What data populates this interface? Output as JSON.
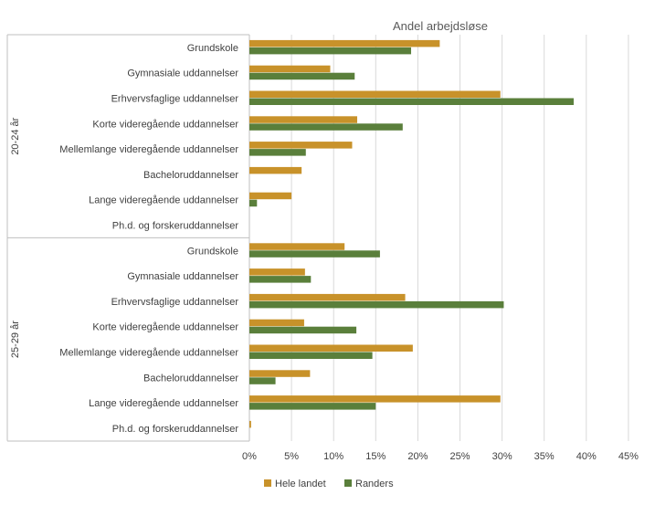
{
  "chart_data": {
    "type": "bar",
    "orientation": "horizontal",
    "title": "Andel arbejdsløse",
    "xlim": [
      0,
      45
    ],
    "x_ticks": [
      "0%",
      "5%",
      "10%",
      "15%",
      "20%",
      "25%",
      "30%",
      "35%",
      "40%",
      "45%"
    ],
    "grid": true,
    "legend_position": "bottom",
    "groups": [
      {
        "label": "20-24 år",
        "categories": [
          "Grundskole",
          "Gymnasiale uddannelser",
          "Erhvervsfaglige uddannelser",
          "Korte videregående uddannelser",
          "Mellemlange videregående uddannelser",
          "Bacheloruddannelser",
          "Lange videregående uddannelser",
          "Ph.d. og forskeruddannelser"
        ],
        "series": [
          {
            "name": "Hele landet",
            "color": "#C8922A",
            "values": [
              22.6,
              9.6,
              29.8,
              12.8,
              12.2,
              6.2,
              5.0,
              0
            ]
          },
          {
            "name": "Randers",
            "color": "#5A7F3B",
            "values": [
              19.2,
              12.5,
              38.5,
              18.2,
              6.7,
              0,
              0.9,
              0
            ]
          }
        ]
      },
      {
        "label": "25-29 år",
        "categories": [
          "Grundskole",
          "Gymnasiale uddannelser",
          "Erhvervsfaglige uddannelser",
          "Korte videregående uddannelser",
          "Mellemlange videregående uddannelser",
          "Bacheloruddannelser",
          "Lange videregående uddannelser",
          "Ph.d. og forskeruddannelser"
        ],
        "series": [
          {
            "name": "Hele landet",
            "color": "#C8922A",
            "values": [
              11.3,
              6.6,
              18.5,
              6.5,
              19.4,
              7.2,
              29.8,
              0.2
            ]
          },
          {
            "name": "Randers",
            "color": "#5A7F3B",
            "values": [
              15.5,
              7.3,
              30.2,
              12.7,
              14.6,
              3.1,
              15.0,
              0
            ]
          }
        ]
      }
    ],
    "legend": [
      "Hele landet",
      "Randers"
    ]
  }
}
